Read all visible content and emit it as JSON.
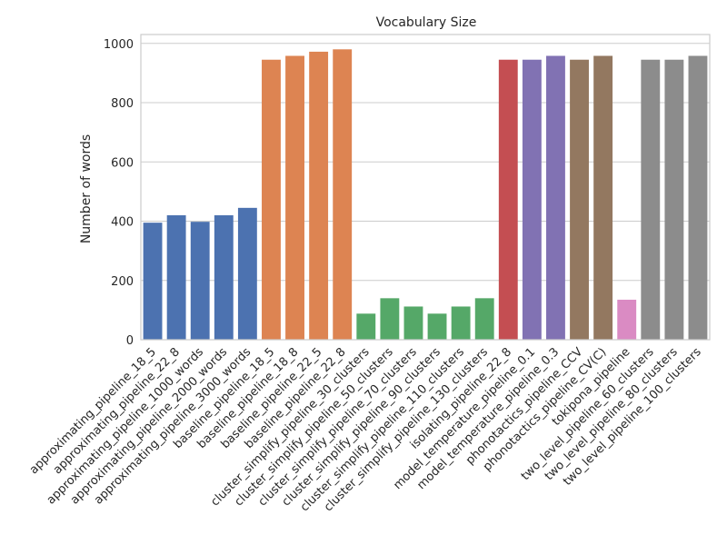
{
  "chart_data": {
    "type": "bar",
    "title": "Vocabulary Size",
    "xlabel": "",
    "ylabel": "Number of words",
    "ylim": [
      0,
      1030
    ],
    "yticks": [
      0,
      200,
      400,
      600,
      800,
      1000
    ],
    "grid": true,
    "categories": [
      "approximating_pipeline_18_5",
      "approximating_pipeline_22_8",
      "approximating_pipeline_1000_words",
      "approximating_pipeline_2000_words",
      "approximating_pipeline_3000_words",
      "baseline_pipeline_18_5",
      "baseline_pipeline_18_8",
      "baseline_pipeline_22_5",
      "baseline_pipeline_22_8",
      "cluster_simplify_pipeline_30_clusters",
      "cluster_simplify_pipeline_50_clusters",
      "cluster_simplify_pipeline_70_clusters",
      "cluster_simplify_pipeline_90_clusters",
      "cluster_simplify_pipeline_110_clusters",
      "cluster_simplify_pipeline_130_clusters",
      "isolating_pipeline_22_8",
      "model_temperature_pipeline_0.1",
      "model_temperature_pipeline_0.3",
      "phonotactics_pipeline_CCV",
      "phonotactics_pipeline_CV(C)",
      "tokipona_pipeline",
      "two_level_pipeline_60_clusters",
      "two_level_pipeline_80_clusters",
      "two_level_pipeline_100_clusters"
    ],
    "values": [
      395,
      420,
      398,
      420,
      445,
      945,
      958,
      972,
      980,
      88,
      140,
      112,
      88,
      112,
      140,
      945,
      945,
      958,
      945,
      958,
      135,
      945,
      945,
      958
    ],
    "colors": [
      "#4c72b0",
      "#4c72b0",
      "#4c72b0",
      "#4c72b0",
      "#4c72b0",
      "#dd8452",
      "#dd8452",
      "#dd8452",
      "#dd8452",
      "#55a868",
      "#55a868",
      "#55a868",
      "#55a868",
      "#55a868",
      "#55a868",
      "#c44e52",
      "#8172b3",
      "#8172b3",
      "#937860",
      "#937860",
      "#da8bc3",
      "#8c8c8c",
      "#8c8c8c",
      "#8c8c8c"
    ]
  }
}
